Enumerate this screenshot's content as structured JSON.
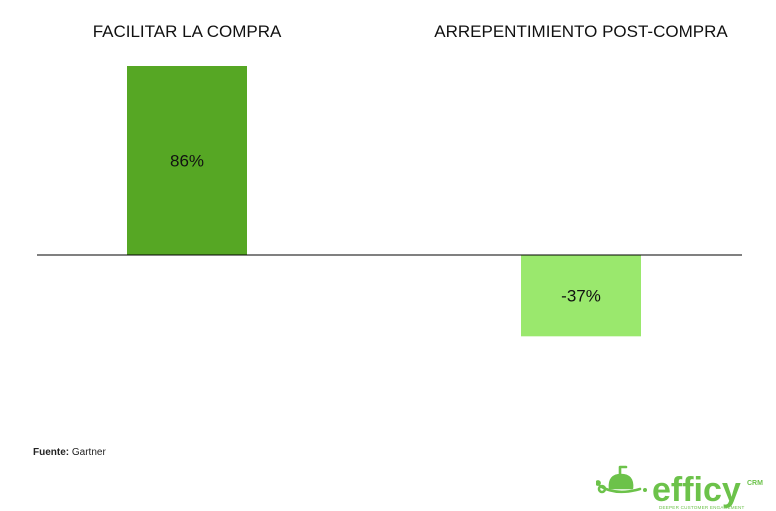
{
  "chart_data": {
    "type": "bar",
    "categories": [
      "FACILITAR LA COMPRA",
      "ARREPENTIMIENTO POST-COMPRA"
    ],
    "values": [
      86,
      -37
    ],
    "value_labels": [
      "86%",
      "-37%"
    ],
    "ylim": [
      -86,
      86
    ],
    "grid": false,
    "colors": [
      "#56a724",
      "#9ae86d"
    ],
    "axis_color": "#000000"
  },
  "source": {
    "label": "Fuente:",
    "value": "Gartner"
  },
  "logo": {
    "word": "efficy",
    "badge": "CRM",
    "tagline": "DEEPER CUSTOMER ENGAGEMENT",
    "color": "#6cc24a"
  }
}
